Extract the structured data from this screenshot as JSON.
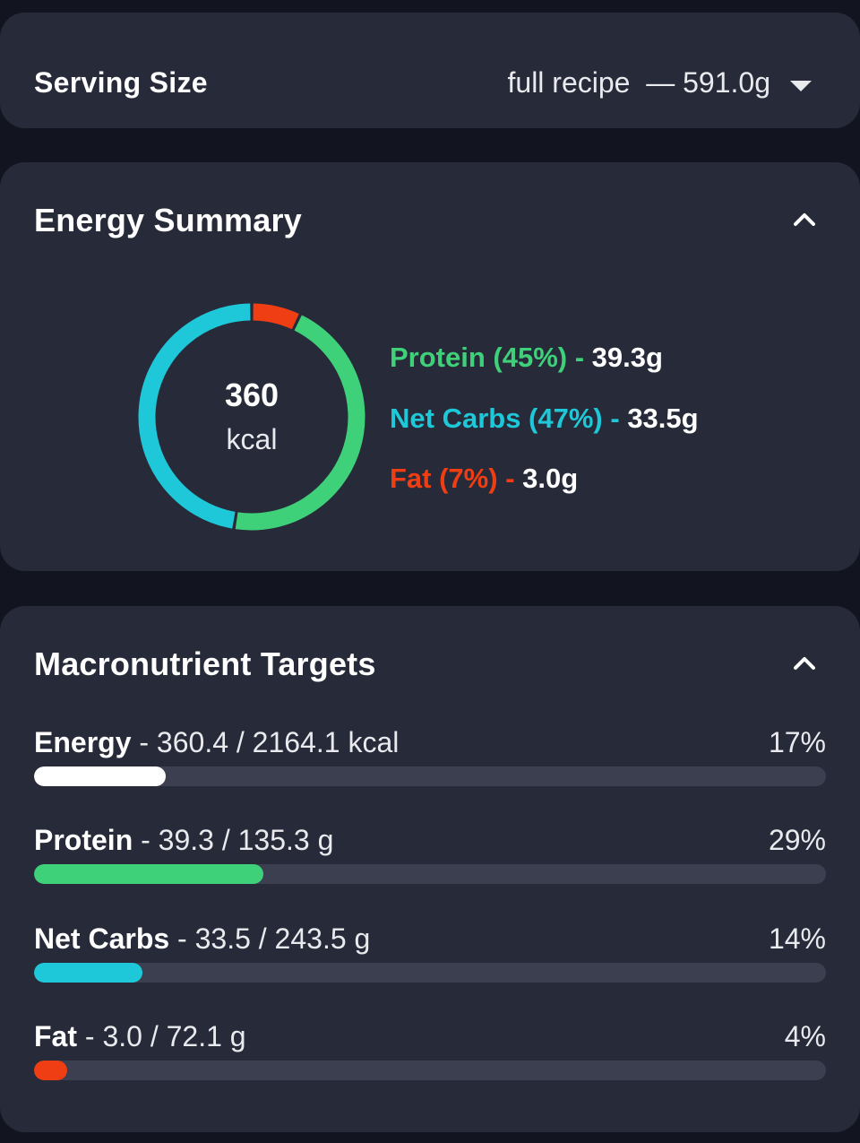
{
  "serving": {
    "label": "Serving Size",
    "value": "full recipe  — 591.0g",
    "dropdown_icon": "caret-down-icon"
  },
  "energy_summary": {
    "title": "Energy Summary",
    "collapse_icon": "chevron-up-icon",
    "kcal_value": "360",
    "kcal_unit": "kcal",
    "legend": [
      {
        "name": "Protein (45%)",
        "sep": " - ",
        "amount": "39.3g",
        "color": "#3fd07a"
      },
      {
        "name": "Net Carbs (47%)",
        "sep": " - ",
        "amount": "33.5g",
        "color": "#1ec8d8"
      },
      {
        "name": "Fat (7%)",
        "sep": " - ",
        "amount": "3.0g",
        "color": "#ef3e13"
      }
    ],
    "donut": {
      "segments": [
        {
          "name": "Protein",
          "percent": 45,
          "color": "#3fd07a"
        },
        {
          "name": "Net Carbs",
          "percent": 47,
          "color": "#1ec8d8"
        },
        {
          "name": "Fat",
          "percent": 7,
          "color": "#ef3e13"
        }
      ]
    }
  },
  "macro_targets": {
    "title": "Macronutrient Targets",
    "collapse_icon": "chevron-up-icon",
    "rows": [
      {
        "name": "Energy",
        "detail": " - 360.4 / 2164.1 kcal",
        "percent_label": "17%",
        "fill_fraction": 0.166,
        "color": "#ffffff"
      },
      {
        "name": "Protein",
        "detail": " - 39.3 / 135.3 g",
        "percent_label": "29%",
        "fill_fraction": 0.29,
        "color": "#3fd07a"
      },
      {
        "name": "Net Carbs",
        "detail": " - 33.5 / 243.5 g",
        "percent_label": "14%",
        "fill_fraction": 0.137,
        "color": "#1ec8d8"
      },
      {
        "name": "Fat",
        "detail": " - 3.0 / 72.1 g",
        "percent_label": "4%",
        "fill_fraction": 0.042,
        "color": "#ef3e13"
      }
    ]
  }
}
